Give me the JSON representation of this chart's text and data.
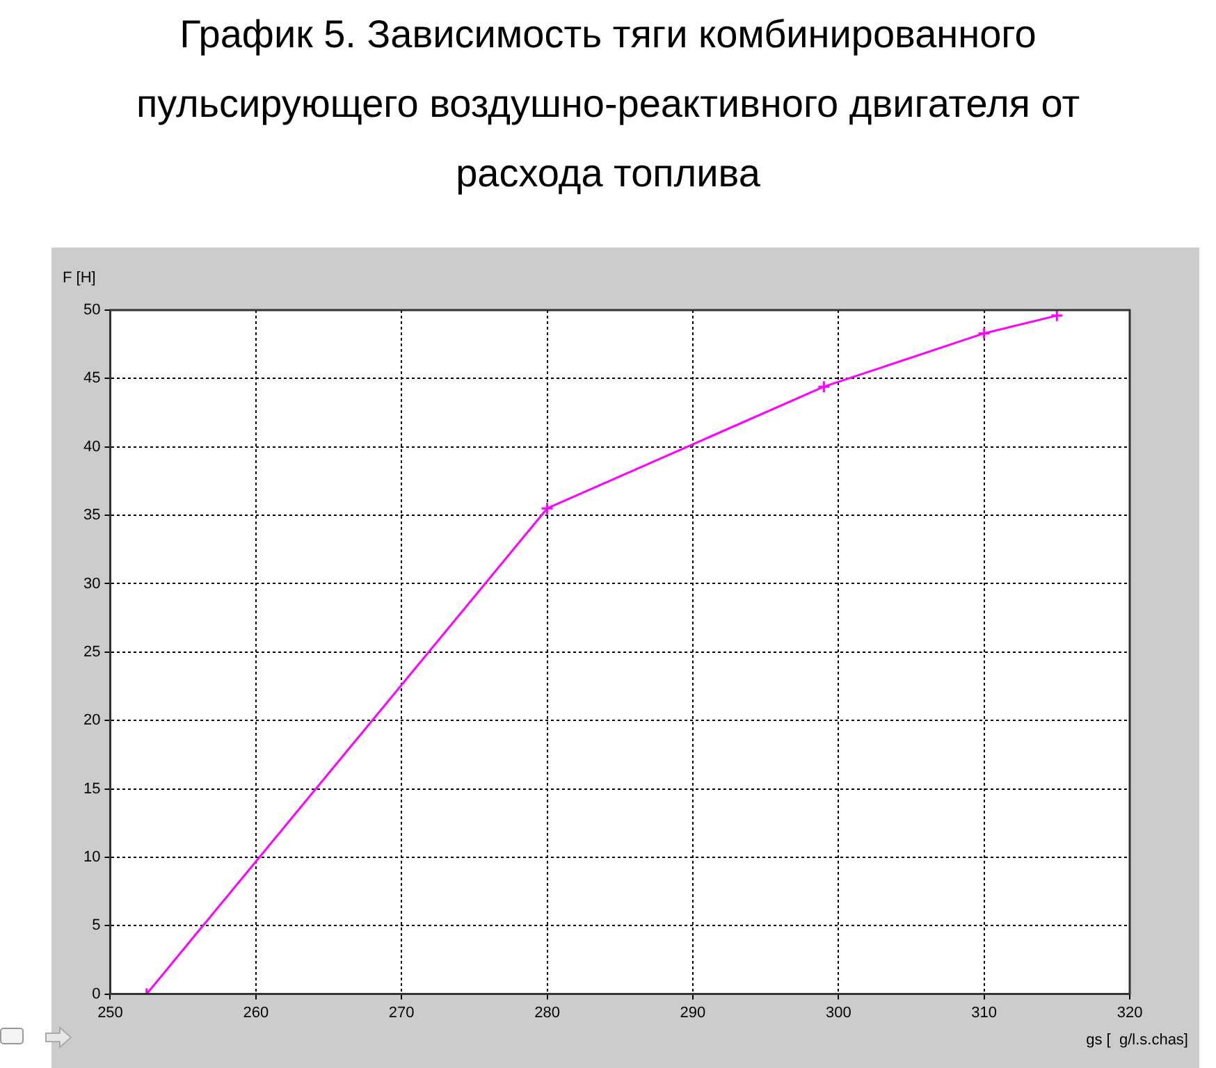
{
  "chart_data": {
    "type": "line",
    "title": "График 5. Зависимость тяги комбинированного пульсирующего воздушно-реактивного двигателя от расхода топлива",
    "xlabel": "gs [  g/l.s.chas]",
    "ylabel": "F [H]",
    "x": [
      252.5,
      280,
      299,
      310,
      315
    ],
    "series": [
      {
        "color": "#ff00ff",
        "values": [
          0,
          35.5,
          44.4,
          48.3,
          49.6
        ]
      }
    ],
    "xlim": [
      250,
      320
    ],
    "xticks": [
      250,
      260,
      270,
      280,
      290,
      300,
      310,
      320
    ],
    "ylim": [
      0,
      50
    ],
    "yticks": [
      0,
      5,
      10,
      15,
      20,
      25,
      30,
      35,
      40,
      45,
      50
    ],
    "grid": true,
    "legend": false,
    "marker": "cross",
    "line_style": "solid"
  }
}
